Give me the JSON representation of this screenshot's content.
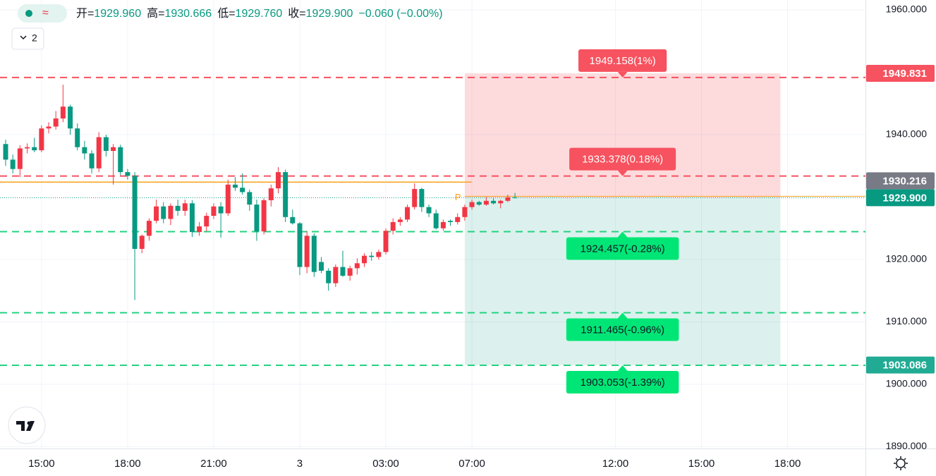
{
  "chart_data": {
    "type": "candlestick",
    "legend": {
      "items": [
        {
          "label": "开=",
          "value": "1929.960"
        },
        {
          "label": "高=",
          "value": "1930.666"
        },
        {
          "label": "低=",
          "value": "1929.760"
        },
        {
          "label": "收=",
          "value": "1929.900"
        }
      ],
      "change": "−0.060 (−0.00%)",
      "indicator_count": "2"
    },
    "up_color": "#f23645",
    "down_color": "#089981",
    "open": [
      1938.5,
      1936.0,
      1934.5,
      1937.8,
      1938.0,
      1937.5,
      1941.0,
      1941.3,
      1942.6,
      1944.5,
      1941.0,
      1938.0,
      1937.0,
      1934.6,
      1939.6,
      1937.4,
      1938.0,
      1934.0,
      1933.4,
      1921.7,
      1923.8,
      1926.2,
      1928.5,
      1926.5,
      1928.6,
      1927.8,
      1929.0,
      1924.4,
      1925.3,
      1927.0,
      1928.5,
      1927.4,
      1932.0,
      1931.5,
      1930.8,
      1928.8,
      1924.5,
      1929.5,
      1931.4,
      1934.0,
      1926.8,
      1925.8,
      1918.8,
      1923.8,
      1919.6,
      1918.2,
      1916.2,
      1918.8,
      1917.4,
      1918.6,
      1919.4,
      1920.6,
      1920.4,
      1921.2,
      1924.6,
      1926.0,
      1926.4,
      1928.4,
      1931.3,
      1928.4,
      1927.4,
      1925.0,
      1926.2,
      1926.0,
      1926.8,
      1928.4,
      1929.2,
      1928.8,
      1929.4,
      1929.0,
      1929.4,
      1929.96
    ],
    "high": [
      1939.2,
      1936.8,
      1938.3,
      1938.6,
      1939.5,
      1941.5,
      1942.0,
      1943.8,
      1948.0,
      1944.8,
      1941.8,
      1939.0,
      1937.5,
      1940.4,
      1940.0,
      1938.5,
      1938.4,
      1934.5,
      1934.0,
      1924.0,
      1926.6,
      1929.6,
      1929.2,
      1929.0,
      1929.6,
      1929.6,
      1929.5,
      1926.0,
      1927.5,
      1929.0,
      1929.2,
      1932.8,
      1933.2,
      1933.8,
      1931.2,
      1929.6,
      1929.8,
      1932.0,
      1934.8,
      1934.4,
      1928.0,
      1926.0,
      1924.6,
      1924.2,
      1920.4,
      1918.6,
      1919.2,
      1921.4,
      1919.0,
      1920.2,
      1921.0,
      1921.2,
      1921.6,
      1925.0,
      1926.6,
      1926.8,
      1928.8,
      1932.2,
      1931.5,
      1928.8,
      1928.0,
      1926.4,
      1926.4,
      1927.4,
      1928.8,
      1929.6,
      1929.4,
      1930.0,
      1929.8,
      1929.6,
      1930.4,
      1930.666
    ],
    "low": [
      1935.0,
      1933.8,
      1933.2,
      1937.0,
      1937.2,
      1937.2,
      1940.2,
      1940.8,
      1942.0,
      1940.0,
      1937.5,
      1936.0,
      1933.8,
      1934.0,
      1936.5,
      1932.0,
      1933.5,
      1932.8,
      1913.5,
      1921.0,
      1923.0,
      1925.8,
      1925.8,
      1925.5,
      1927.0,
      1927.0,
      1923.6,
      1923.8,
      1924.5,
      1926.5,
      1923.5,
      1927.0,
      1931.0,
      1930.4,
      1927.8,
      1923.0,
      1924.0,
      1928.5,
      1930.6,
      1926.0,
      1925.6,
      1917.5,
      1917.8,
      1917.2,
      1917.8,
      1915.0,
      1915.6,
      1917.2,
      1916.6,
      1917.6,
      1918.8,
      1919.8,
      1920.0,
      1920.8,
      1924.0,
      1925.4,
      1926.0,
      1928.0,
      1927.6,
      1926.8,
      1924.8,
      1924.6,
      1925.4,
      1925.6,
      1926.2,
      1928.0,
      1928.6,
      1928.6,
      1928.8,
      1928.2,
      1929.2,
      1929.76
    ],
    "close": [
      1936.0,
      1934.5,
      1937.8,
      1938.0,
      1937.5,
      1941.0,
      1941.3,
      1942.6,
      1944.5,
      1941.0,
      1938.0,
      1937.0,
      1934.6,
      1939.6,
      1937.4,
      1938.0,
      1934.0,
      1933.4,
      1921.7,
      1923.8,
      1926.2,
      1928.5,
      1926.5,
      1928.6,
      1927.8,
      1929.0,
      1924.4,
      1925.3,
      1927.0,
      1928.5,
      1927.4,
      1932.0,
      1931.5,
      1930.8,
      1928.8,
      1924.5,
      1929.5,
      1931.4,
      1934.0,
      1926.8,
      1925.8,
      1918.8,
      1923.8,
      1918.0,
      1918.2,
      1916.2,
      1918.8,
      1917.4,
      1918.6,
      1919.4,
      1920.6,
      1920.4,
      1921.2,
      1924.6,
      1926.0,
      1926.4,
      1928.4,
      1931.3,
      1928.4,
      1927.4,
      1925.0,
      1926.0,
      1926.0,
      1926.8,
      1928.4,
      1929.2,
      1928.8,
      1929.4,
      1929.0,
      1929.4,
      1929.96,
      1929.9
    ],
    "xlim": [
      -0.787,
      119.86
    ],
    "xticks": [
      {
        "value": 5,
        "label": "15:00"
      },
      {
        "value": 17,
        "label": "18:00"
      },
      {
        "value": 29,
        "label": "21:00"
      },
      {
        "value": 41,
        "label": "3"
      },
      {
        "value": 53,
        "label": "03:00"
      },
      {
        "value": 65,
        "label": "07:00"
      },
      {
        "value": 85,
        "label": "12:00"
      },
      {
        "value": 97,
        "label": "15:00"
      },
      {
        "value": 109,
        "label": "18:00"
      }
    ],
    "ylim": [
      1889.83,
      1961.58
    ],
    "yticks": [
      {
        "value": 1890,
        "label": "1890.000"
      },
      {
        "value": 1900,
        "label": "1900.000"
      },
      {
        "value": 1910,
        "label": "1910.000"
      },
      {
        "value": 1920,
        "label": "1920.000"
      },
      {
        "value": 1940,
        "label": "1940.000"
      },
      {
        "value": 1960,
        "label": "1960.000"
      }
    ],
    "grid": true,
    "reference_line": {
      "value": 1932.4,
      "color": "#f7a21b"
    },
    "position": {
      "start": 64,
      "end": 108,
      "top": 1949.831,
      "entry": 1929.9,
      "bottom": 1903.086,
      "marker": "P"
    },
    "targets": [
      {
        "value": 1949.158,
        "label": "1949.158(1%)"
      },
      {
        "value": 1933.378,
        "label": "1933.378(0.18%)"
      },
      {
        "value": 1924.457,
        "label": "1924.457(-0.28%)"
      },
      {
        "value": 1911.465,
        "label": "1911.465(-0.96%)"
      },
      {
        "value": 1903.053,
        "label": "1903.053(-1.39%)"
      }
    ],
    "price_tags": [
      {
        "value": 1949.831,
        "label": "1949.831",
        "color": "#f7525f"
      },
      {
        "value": 1930.216,
        "label": "1930.216",
        "color": "#787b86"
      },
      {
        "value": 1929.9,
        "label": "1929.900",
        "color": "#089981"
      },
      {
        "value": 1903.086,
        "label": "1903.086",
        "color": "#22ab94"
      }
    ]
  }
}
